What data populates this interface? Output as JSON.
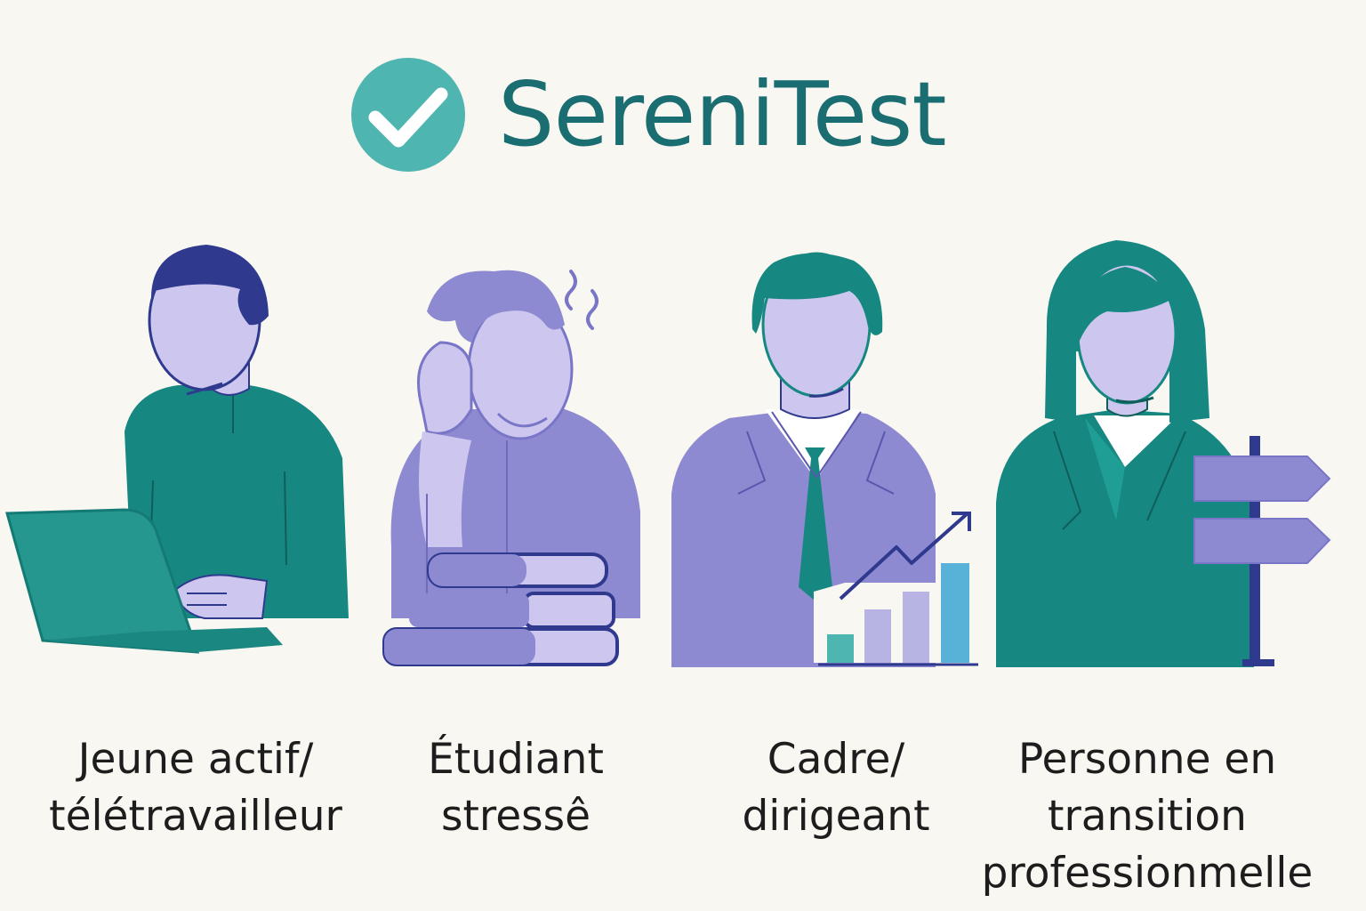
{
  "brand": {
    "name": "SereniTest",
    "logo_icon": "check-circle-icon",
    "accent_color": "#4fb5b0",
    "text_color": "#1a6e72"
  },
  "personas": [
    {
      "id": "young-professional",
      "icon": "laptop-worker-icon",
      "line1": "Jeune actif/",
      "line2": "télétravailleur",
      "line3": ""
    },
    {
      "id": "student",
      "icon": "stressed-student-icon",
      "line1": "Étudiant",
      "line2": "stressê",
      "line3": ""
    },
    {
      "id": "executive",
      "icon": "executive-growth-chart-icon",
      "line1": "Cadre/",
      "line2": "dirigeant",
      "line3": ""
    },
    {
      "id": "career-change",
      "icon": "signpost-woman-icon",
      "line1": "Personne en",
      "line2": "transition",
      "line3": "professionmelle"
    }
  ],
  "palette": {
    "teal": "#178781",
    "violet": "#8e8ad1",
    "lavender": "#cdc7ef",
    "navy": "#2f3a8f",
    "background": "#f9f7f2"
  }
}
